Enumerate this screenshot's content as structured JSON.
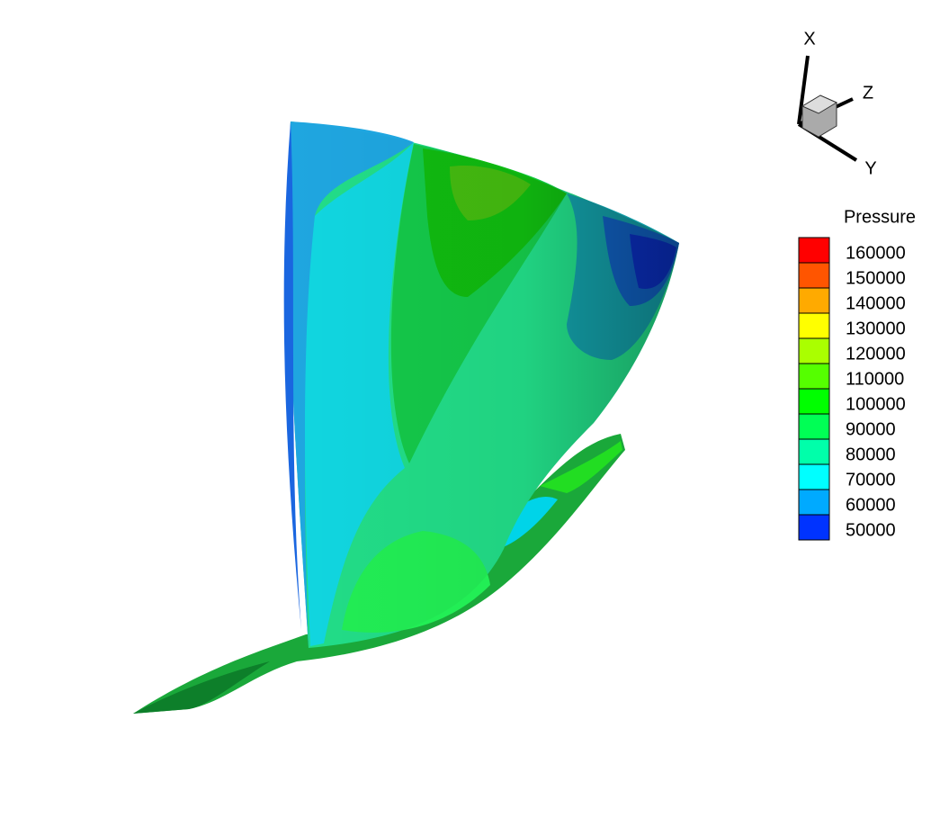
{
  "legend": {
    "title": "Pressure",
    "levels": [
      {
        "value": 160000,
        "color": "#ff0000"
      },
      {
        "value": 150000,
        "color": "#ff5500"
      },
      {
        "value": 140000,
        "color": "#ffaa00"
      },
      {
        "value": 130000,
        "color": "#ffff00"
      },
      {
        "value": 120000,
        "color": "#aaff00"
      },
      {
        "value": 110000,
        "color": "#55ff00"
      },
      {
        "value": 100000,
        "color": "#00ff00"
      },
      {
        "value": 90000,
        "color": "#00ff55"
      },
      {
        "value": 80000,
        "color": "#00ffaa"
      },
      {
        "value": 70000,
        "color": "#00ffff"
      },
      {
        "value": 60000,
        "color": "#00aaff"
      },
      {
        "value": 50000,
        "color": "#0033ff"
      }
    ]
  },
  "axes": {
    "x": "X",
    "y": "Y",
    "z": "Z"
  }
}
